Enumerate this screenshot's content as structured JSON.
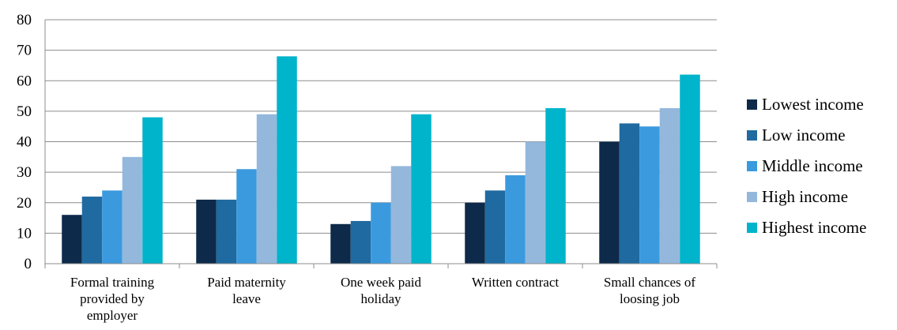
{
  "chart_data": {
    "type": "bar",
    "categories": [
      [
        "Formal training",
        "provided by",
        "employer"
      ],
      [
        "Paid maternity",
        "leave"
      ],
      [
        "One week paid",
        "holiday"
      ],
      [
        "Written contract"
      ],
      [
        "Small chances of",
        "loosing job"
      ]
    ],
    "series": [
      {
        "name": "Lowest income",
        "color": "#0d2a4a",
        "values": [
          16,
          21,
          13,
          20,
          40
        ]
      },
      {
        "name": "Low income",
        "color": "#1f6aa0",
        "values": [
          22,
          21,
          14,
          24,
          46
        ]
      },
      {
        "name": "Middle income",
        "color": "#3b9ade",
        "values": [
          24,
          31,
          20,
          29,
          45
        ]
      },
      {
        "name": "High income",
        "color": "#94b8dc",
        "values": [
          35,
          49,
          32,
          40,
          51
        ]
      },
      {
        "name": "Highest income",
        "color": "#00b4cc",
        "values": [
          48,
          68,
          49,
          51,
          62
        ]
      }
    ],
    "ylim": [
      0,
      80
    ],
    "yticks": [
      0,
      10,
      20,
      30,
      40,
      50,
      60,
      70,
      80
    ],
    "grid": true,
    "legend_position": "right",
    "title": "",
    "xlabel": "",
    "ylabel": ""
  }
}
